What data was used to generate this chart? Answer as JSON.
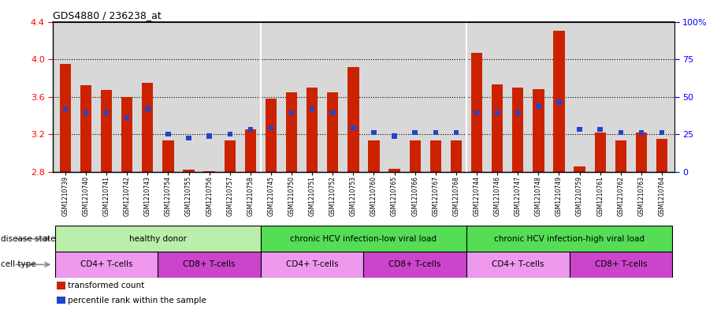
{
  "title": "GDS4880 / 236238_at",
  "samples": [
    "GSM1210739",
    "GSM1210740",
    "GSM1210741",
    "GSM1210742",
    "GSM1210743",
    "GSM1210754",
    "GSM1210755",
    "GSM1210756",
    "GSM1210757",
    "GSM1210758",
    "GSM1210745",
    "GSM1210750",
    "GSM1210751",
    "GSM1210752",
    "GSM1210753",
    "GSM1210760",
    "GSM1210765",
    "GSM1210766",
    "GSM1210767",
    "GSM1210768",
    "GSM1210744",
    "GSM1210746",
    "GSM1210747",
    "GSM1210748",
    "GSM1210749",
    "GSM1210759",
    "GSM1210761",
    "GSM1210762",
    "GSM1210763",
    "GSM1210764"
  ],
  "red_values": [
    3.95,
    3.72,
    3.67,
    3.6,
    3.75,
    3.13,
    2.82,
    2.81,
    3.13,
    3.25,
    3.58,
    3.65,
    3.7,
    3.65,
    3.92,
    3.13,
    2.83,
    3.13,
    3.13,
    3.13,
    4.07,
    3.73,
    3.7,
    3.68,
    4.3,
    2.86,
    3.22,
    3.13,
    3.22,
    3.15
  ],
  "blue_values": [
    3.47,
    3.43,
    3.43,
    3.38,
    3.47,
    3.2,
    3.16,
    3.18,
    3.2,
    3.25,
    3.27,
    3.43,
    3.47,
    3.43,
    3.27,
    3.22,
    3.18,
    3.22,
    3.22,
    3.22,
    3.43,
    3.43,
    3.43,
    3.5,
    3.54,
    3.25,
    3.25,
    3.22,
    3.22,
    3.22
  ],
  "ylim": [
    2.8,
    4.4
  ],
  "y_ticks_left": [
    2.8,
    3.2,
    3.6,
    4.0,
    4.4
  ],
  "y_ticks_right": [
    0,
    25,
    50,
    75,
    100
  ],
  "right_tick_labels": [
    "0",
    "25",
    "50",
    "75",
    "100%"
  ],
  "bar_color": "#cc2200",
  "blue_color": "#2244cc",
  "bg_color": "#d8d8d8",
  "disease_state_groups": [
    {
      "label": "healthy donor",
      "start": 0,
      "end": 9,
      "color": "#bbeeaa"
    },
    {
      "label": "chronic HCV infection-low viral load",
      "start": 10,
      "end": 19,
      "color": "#55dd55"
    },
    {
      "label": "chronic HCV infection-high viral load",
      "start": 20,
      "end": 29,
      "color": "#55dd55"
    }
  ],
  "cell_type_groups": [
    {
      "label": "CD4+ T-cells",
      "start": 0,
      "end": 4,
      "color": "#ee99ee"
    },
    {
      "label": "CD8+ T-cells",
      "start": 5,
      "end": 9,
      "color": "#cc44cc"
    },
    {
      "label": "CD4+ T-cells",
      "start": 10,
      "end": 14,
      "color": "#ee99ee"
    },
    {
      "label": "CD8+ T-cells",
      "start": 15,
      "end": 19,
      "color": "#cc44cc"
    },
    {
      "label": "CD4+ T-cells",
      "start": 20,
      "end": 24,
      "color": "#ee99ee"
    },
    {
      "label": "CD8+ T-cells",
      "start": 25,
      "end": 29,
      "color": "#cc44cc"
    }
  ],
  "legend_items": [
    {
      "label": "transformed count",
      "color": "#cc2200"
    },
    {
      "label": "percentile rank within the sample",
      "color": "#2244cc"
    }
  ],
  "bar_width": 0.55,
  "base_value": 2.8,
  "group_separators": [
    9.5,
    19.5
  ]
}
